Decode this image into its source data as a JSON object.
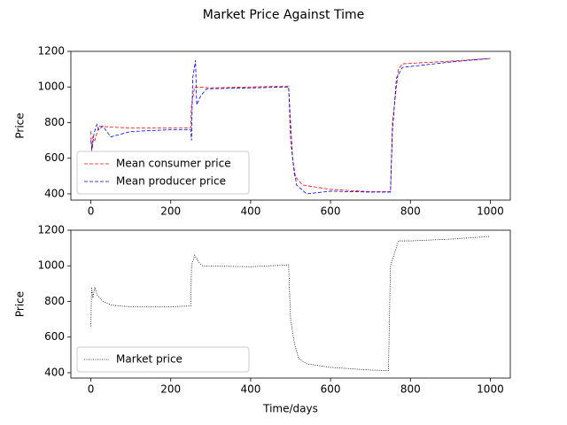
{
  "title": "Market Price Against Time",
  "chart_data": [
    {
      "type": "line",
      "ylabel": "Price",
      "xlim": [
        -50,
        1050
      ],
      "ylim": [
        365,
        1200
      ],
      "xticks": [
        0,
        200,
        400,
        600,
        800,
        1000
      ],
      "yticks": [
        400,
        600,
        800,
        1000,
        1200
      ],
      "legend": "lower left",
      "series": [
        {
          "name": "Mean consumer price",
          "color": "#ff0000",
          "linestyle": "dashed",
          "x": [
            0,
            2,
            5,
            10,
            20,
            50,
            100,
            200,
            250,
            252,
            260,
            300,
            400,
            495,
            500,
            510,
            530,
            600,
            700,
            750,
            755,
            770,
            780,
            900,
            1000
          ],
          "values": [
            750,
            640,
            720,
            700,
            780,
            775,
            770,
            770,
            770,
            900,
            1000,
            995,
            1000,
            1005,
            700,
            500,
            450,
            425,
            412,
            412,
            800,
            1100,
            1130,
            1145,
            1160
          ]
        },
        {
          "name": "Mean producer price",
          "color": "#0000ff",
          "linestyle": "dashed",
          "x": [
            0,
            3,
            8,
            15,
            20,
            30,
            50,
            100,
            200,
            250,
            252,
            255,
            262,
            265,
            275,
            290,
            400,
            495,
            500,
            505,
            515,
            530,
            540,
            600,
            700,
            750,
            755,
            765,
            780,
            900,
            1000
          ],
          "values": [
            700,
            650,
            740,
            790,
            760,
            780,
            720,
            750,
            760,
            760,
            700,
            1050,
            1150,
            900,
            950,
            990,
            995,
            1000,
            800,
            600,
            450,
            420,
            400,
            415,
            410,
            410,
            750,
            1050,
            1110,
            1140,
            1160
          ]
        }
      ]
    },
    {
      "type": "line",
      "ylabel": "Price",
      "xlabel": "Time/days",
      "xlim": [
        -50,
        1050
      ],
      "ylim": [
        370,
        1200
      ],
      "xticks": [
        0,
        200,
        400,
        600,
        800,
        1000
      ],
      "yticks": [
        400,
        600,
        800,
        1000,
        1200
      ],
      "legend": "lower left",
      "series": [
        {
          "name": "Market price",
          "color": "#000000",
          "linestyle": "dotted",
          "x": [
            0,
            2,
            5,
            10,
            15,
            30,
            50,
            100,
            200,
            250,
            252,
            260,
            270,
            280,
            400,
            495,
            500,
            510,
            520,
            540,
            600,
            700,
            745,
            750,
            760,
            770,
            800,
            900,
            1000
          ],
          "values": [
            660,
            880,
            820,
            880,
            840,
            800,
            780,
            770,
            770,
            775,
            1000,
            1060,
            1020,
            1000,
            995,
            1005,
            700,
            560,
            480,
            450,
            430,
            415,
            412,
            1000,
            1070,
            1140,
            1140,
            1150,
            1165
          ]
        }
      ]
    }
  ]
}
